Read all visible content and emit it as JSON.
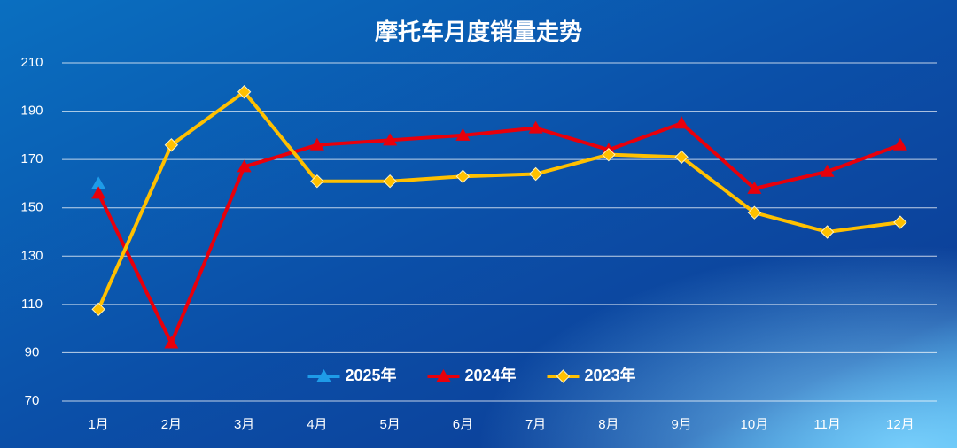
{
  "chart_data": {
    "type": "line",
    "title": "摩托车月度销量走势",
    "categories": [
      "1月",
      "2月",
      "3月",
      "4月",
      "5月",
      "6月",
      "7月",
      "8月",
      "9月",
      "10月",
      "11月",
      "12月"
    ],
    "series": [
      {
        "name": "2025年",
        "color": "#1e9be8",
        "marker": "triangle",
        "values": [
          160,
          null,
          null,
          null,
          null,
          null,
          null,
          null,
          null,
          null,
          null,
          null
        ]
      },
      {
        "name": "2024年",
        "color": "#e8000b",
        "marker": "triangle",
        "values": [
          156,
          94,
          167,
          176,
          178,
          180,
          183,
          174,
          185,
          158,
          165,
          176
        ]
      },
      {
        "name": "2023年",
        "color": "#ffc000",
        "marker": "diamond",
        "values": [
          108,
          176,
          198,
          161,
          161,
          163,
          164,
          172,
          171,
          148,
          140,
          144
        ]
      }
    ],
    "ylim": [
      70,
      210
    ],
    "yticks": [
      70,
      90,
      110,
      130,
      150,
      170,
      190,
      210
    ],
    "grid": true,
    "legend": "bottom"
  }
}
